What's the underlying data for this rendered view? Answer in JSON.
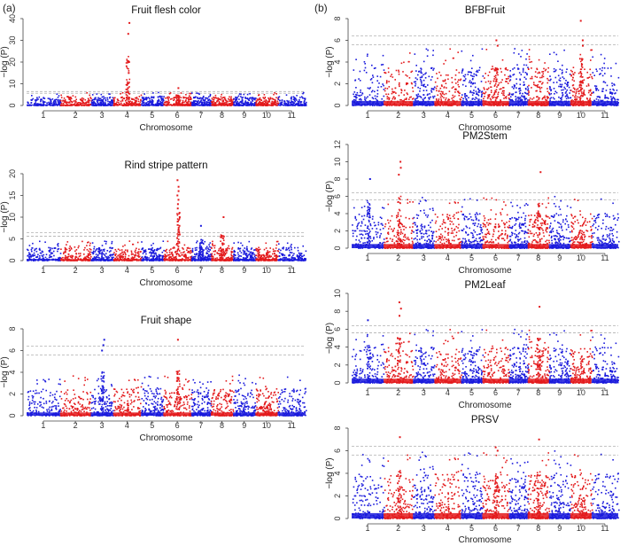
{
  "panel_labels": [
    "(a)",
    "(b)"
  ],
  "legend_colors": {
    "odd_chromosome": "#1a1adc",
    "even_chromosome": "#e31a1c",
    "threshold": "#b0b0b0"
  },
  "chart_data": [
    {
      "type": "scatter",
      "title": "Fruit flesh color",
      "xlabel": "Chromosome",
      "ylabel": "−log (P)",
      "ylim": [
        0,
        40
      ],
      "yticks": [
        0,
        10,
        20,
        30,
        40
      ],
      "chromosomes": [
        "1",
        "2",
        "3",
        "4",
        "5",
        "6",
        "7",
        "8",
        "9",
        "10",
        "11"
      ],
      "thresholds": [
        5.6,
        6.4
      ],
      "peaks": [
        {
          "chromosome": "4",
          "values": [
            38,
            33,
            20,
            15,
            10,
            8
          ]
        },
        {
          "chromosome": "6",
          "values": [
            8
          ]
        }
      ],
      "baseline_max": 4
    },
    {
      "type": "scatter",
      "title": "Rind stripe pattern",
      "xlabel": "Chromosome",
      "ylabel": "−log (P)",
      "ylim": [
        0,
        20
      ],
      "yticks": [
        0,
        5,
        10,
        15,
        20
      ],
      "chromosomes": [
        "1",
        "2",
        "3",
        "4",
        "5",
        "6",
        "7",
        "8",
        "9",
        "10",
        "11"
      ],
      "thresholds": [
        5.6,
        6.4
      ],
      "peaks": [
        {
          "chromosome": "6",
          "values": [
            18.5,
            17,
            16,
            15,
            14,
            13,
            12,
            11,
            10,
            9,
            8,
            7,
            6
          ]
        },
        {
          "chromosome": "8",
          "values": [
            10
          ]
        },
        {
          "chromosome": "7",
          "values": [
            8
          ]
        }
      ],
      "baseline_max": 3
    },
    {
      "type": "scatter",
      "title": "Fruit shape",
      "xlabel": "Chromosome",
      "ylabel": "−log (P)",
      "ylim": [
        0,
        8
      ],
      "yticks": [
        0,
        2,
        4,
        6,
        8
      ],
      "chromosomes": [
        "1",
        "2",
        "3",
        "4",
        "5",
        "6",
        "7",
        "8",
        "9",
        "10",
        "11"
      ],
      "thresholds": [
        5.6,
        6.4
      ],
      "peaks": [
        {
          "chromosome": "3",
          "values": [
            7,
            6.5,
            6
          ]
        },
        {
          "chromosome": "6",
          "values": [
            7,
            4,
            3.5
          ]
        }
      ],
      "baseline_max": 2.5
    },
    {
      "type": "scatter",
      "title": "BFBFruit",
      "xlabel": "Chromosome",
      "ylabel": "−log (P)",
      "ylim": [
        0,
        8
      ],
      "yticks": [
        0,
        2,
        4,
        6,
        8
      ],
      "chromosomes": [
        "1",
        "2",
        "3",
        "4",
        "5",
        "6",
        "7",
        "8",
        "9",
        "10",
        "11"
      ],
      "thresholds": [
        5.6,
        6.4
      ],
      "peaks": [
        {
          "chromosome": "10",
          "values": [
            7.8,
            6,
            5.5
          ]
        },
        {
          "chromosome": "6",
          "values": [
            6,
            5.5
          ]
        }
      ],
      "baseline_max": 3.5
    },
    {
      "type": "scatter",
      "title": "PM2Stem",
      "xlabel": "Chromosome",
      "ylabel": "−log (P)",
      "ylim": [
        0,
        12
      ],
      "yticks": [
        0,
        2,
        4,
        6,
        8,
        10,
        12
      ],
      "chromosomes": [
        "1",
        "2",
        "3",
        "4",
        "5",
        "6",
        "7",
        "8",
        "9",
        "10",
        "11"
      ],
      "thresholds": [
        5.6,
        6.4
      ],
      "peaks": [
        {
          "chromosome": "2",
          "values": [
            10,
            9.3,
            8.5
          ]
        },
        {
          "chromosome": "8",
          "values": [
            8.8
          ]
        },
        {
          "chromosome": "1",
          "values": [
            8
          ]
        }
      ],
      "baseline_max": 4
    },
    {
      "type": "scatter",
      "title": "PM2Leaf",
      "xlabel": "Chromosome",
      "ylabel": "−log (P)",
      "ylim": [
        0,
        10
      ],
      "yticks": [
        0,
        2,
        4,
        6,
        8,
        10
      ],
      "chromosomes": [
        "1",
        "2",
        "3",
        "4",
        "5",
        "6",
        "7",
        "8",
        "9",
        "10",
        "11"
      ],
      "thresholds": [
        5.6,
        6.4
      ],
      "peaks": [
        {
          "chromosome": "2",
          "values": [
            9,
            8.3,
            7.5
          ]
        },
        {
          "chromosome": "8",
          "values": [
            8.5
          ]
        },
        {
          "chromosome": "1",
          "values": [
            7
          ]
        }
      ],
      "baseline_max": 4
    },
    {
      "type": "scatter",
      "title": "PRSV",
      "xlabel": "Chromosome",
      "ylabel": "−log (P)",
      "ylim": [
        0,
        8
      ],
      "yticks": [
        0,
        2,
        4,
        6,
        8
      ],
      "chromosomes": [
        "1",
        "2",
        "3",
        "4",
        "5",
        "6",
        "7",
        "8",
        "9",
        "10",
        "11"
      ],
      "thresholds": [
        5.6,
        6.4
      ],
      "peaks": [
        {
          "chromosome": "2",
          "values": [
            7.2
          ]
        },
        {
          "chromosome": "6",
          "values": [
            6.3,
            6
          ]
        },
        {
          "chromosome": "8",
          "values": [
            7
          ]
        }
      ],
      "baseline_max": 4
    }
  ]
}
